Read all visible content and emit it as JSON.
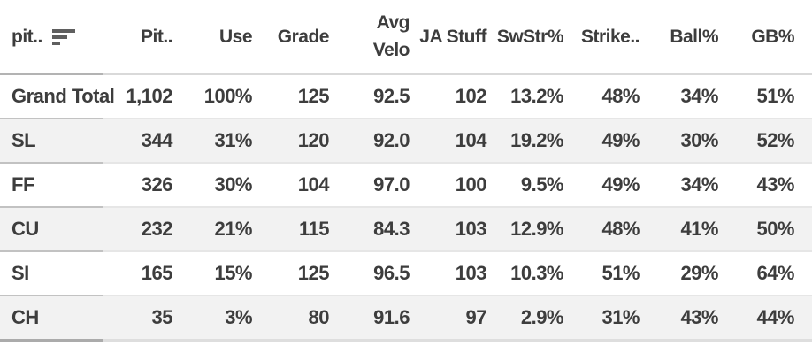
{
  "table": {
    "columns": [
      {
        "label": "pit..",
        "truncated": true,
        "icon": "sort-descending-icon"
      },
      {
        "label": "Pit..",
        "truncated": true
      },
      {
        "label": "Use"
      },
      {
        "label": "Grade"
      },
      {
        "label": "Avg Velo"
      },
      {
        "label": "JA Stuff"
      },
      {
        "label": "SwStr%"
      },
      {
        "label": "Strike..",
        "truncated": true
      },
      {
        "label": "Ball%"
      },
      {
        "label": "GB%"
      }
    ],
    "rows": [
      [
        "Grand Total",
        "1,102",
        "100%",
        "125",
        "92.5",
        "102",
        "13.2%",
        "48%",
        "34%",
        "51%"
      ],
      [
        "SL",
        "344",
        "31%",
        "120",
        "92.0",
        "104",
        "19.2%",
        "49%",
        "30%",
        "52%"
      ],
      [
        "FF",
        "326",
        "30%",
        "104",
        "97.0",
        "100",
        "9.5%",
        "49%",
        "34%",
        "43%"
      ],
      [
        "CU",
        "232",
        "21%",
        "115",
        "84.3",
        "103",
        "12.9%",
        "48%",
        "41%",
        "50%"
      ],
      [
        "SI",
        "165",
        "15%",
        "125",
        "96.5",
        "103",
        "10.3%",
        "51%",
        "29%",
        "64%"
      ],
      [
        "CH",
        "35",
        "3%",
        "80",
        "91.6",
        "97",
        "2.9%",
        "31%",
        "43%",
        "44%"
      ]
    ]
  },
  "colors": {
    "text": "#3d3d3d",
    "row_stripe_bg": "#f2f2f2",
    "header_border_first_col": "#b3b3b3",
    "header_border": "#d9d9d9",
    "row_border_first_col": "#c2c2c2",
    "row_border": "#e6e6e6",
    "bottom_border_first_col": "#ababab",
    "bottom_border": "#dedede",
    "sort_icon": "#5f5f5f"
  }
}
